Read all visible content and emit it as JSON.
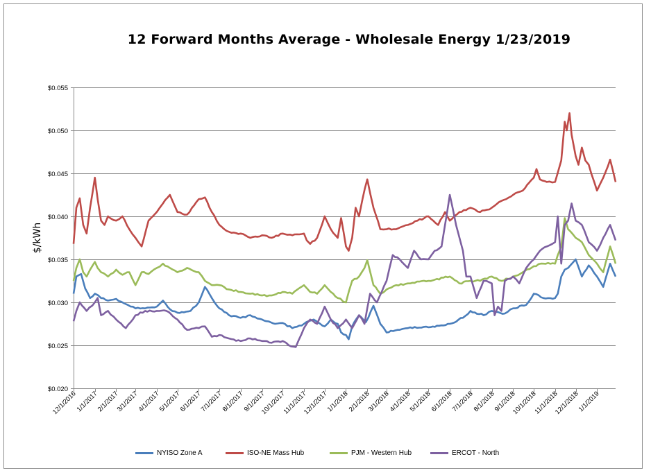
{
  "chart_data": {
    "type": "line",
    "title": "12 Forward Months Average - Wholesale Energy 1/23/2019",
    "ylabel": "$/kWh",
    "xlabel": "",
    "ylim": [
      0.02,
      0.055
    ],
    "yticks": [
      "$0.020",
      "$0.025",
      "$0.030",
      "$0.035",
      "$0.040",
      "$0.045",
      "$0.050",
      "$0.055"
    ],
    "ytick_values": [
      0.02,
      0.025,
      0.03,
      0.035,
      0.04,
      0.045,
      0.05,
      0.055
    ],
    "xlim": [
      "2016-12-01",
      "2019-01-28"
    ],
    "xticks": [
      "12/1/2016",
      "1/1/2017",
      "2/1/2017",
      "3/1/2017",
      "4/1/2017",
      "5/1/2017",
      "6/1/2017",
      "7/1/2017",
      "8/1/2017",
      "9/1/2017",
      "10/1/2017",
      "11/1/2017",
      "12/1/2017",
      "1/1/2018",
      "2/1/2018",
      "3/1/2018",
      "4/1/2018",
      "5/1/2018",
      "6/1/2018",
      "7/1/2018",
      "8/1/2018",
      "9/1/2018",
      "10/1/2018",
      "11/1/2018",
      "12/1/2018",
      "1/1/2019"
    ],
    "xtick_dates": [
      "2016-12-01",
      "2017-01-01",
      "2017-02-01",
      "2017-03-01",
      "2017-04-01",
      "2017-05-01",
      "2017-06-01",
      "2017-07-01",
      "2017-08-01",
      "2017-09-01",
      "2017-10-01",
      "2017-11-01",
      "2017-12-01",
      "2018-01-01",
      "2018-02-01",
      "2018-03-01",
      "2018-04-01",
      "2018-05-01",
      "2018-06-01",
      "2018-07-01",
      "2018-08-01",
      "2018-09-01",
      "2018-10-01",
      "2018-11-01",
      "2018-12-01",
      "2019-01-01"
    ],
    "grid": true,
    "legend_position": "bottom",
    "series": [
      {
        "name": "NYISO Zone A",
        "color": "#4a7ebb",
        "x": [
          "2016-12-01",
          "2016-12-05",
          "2016-12-12",
          "2016-12-18",
          "2016-12-25",
          "2017-01-01",
          "2017-01-10",
          "2017-01-20",
          "2017-02-01",
          "2017-02-15",
          "2017-03-01",
          "2017-03-15",
          "2017-04-01",
          "2017-04-10",
          "2017-04-20",
          "2017-05-01",
          "2017-05-20",
          "2017-06-01",
          "2017-06-10",
          "2017-06-20",
          "2017-07-01",
          "2017-07-15",
          "2017-08-01",
          "2017-08-15",
          "2017-09-01",
          "2017-09-20",
          "2017-10-01",
          "2017-10-15",
          "2017-11-01",
          "2017-11-15",
          "2017-12-01",
          "2017-12-10",
          "2017-12-20",
          "2017-12-25",
          "2018-01-01",
          "2018-01-05",
          "2018-01-10",
          "2018-01-20",
          "2018-01-30",
          "2018-02-10",
          "2018-02-20",
          "2018-03-01",
          "2018-03-20",
          "2018-04-01",
          "2018-05-01",
          "2018-06-01",
          "2018-06-20",
          "2018-07-01",
          "2018-07-20",
          "2018-08-01",
          "2018-08-20",
          "2018-09-01",
          "2018-09-20",
          "2018-10-01",
          "2018-10-15",
          "2018-11-01",
          "2018-11-05",
          "2018-11-10",
          "2018-11-15",
          "2018-11-20",
          "2018-12-01",
          "2018-12-10",
          "2018-12-20",
          "2019-01-01",
          "2019-01-10",
          "2019-01-20",
          "2019-01-28"
        ],
        "values": [
          0.031,
          0.033,
          0.0333,
          0.0316,
          0.0305,
          0.031,
          0.0305,
          0.0302,
          0.0304,
          0.0298,
          0.0293,
          0.0293,
          0.0295,
          0.0302,
          0.0292,
          0.0288,
          0.029,
          0.03,
          0.0318,
          0.0305,
          0.0293,
          0.0285,
          0.0282,
          0.0285,
          0.028,
          0.0275,
          0.0276,
          0.027,
          0.0275,
          0.028,
          0.0272,
          0.028,
          0.0275,
          0.0265,
          0.0262,
          0.0257,
          0.0272,
          0.0285,
          0.0277,
          0.0296,
          0.0275,
          0.0265,
          0.0268,
          0.027,
          0.0271,
          0.0275,
          0.0282,
          0.029,
          0.0285,
          0.029,
          0.0287,
          0.0293,
          0.0297,
          0.031,
          0.0305,
          0.0305,
          0.031,
          0.033,
          0.0338,
          0.034,
          0.035,
          0.033,
          0.0343,
          0.033,
          0.0318,
          0.0345,
          0.033
        ]
      },
      {
        "name": "ISO-NE Mass Hub",
        "color": "#be4b48",
        "x": [
          "2016-12-01",
          "2016-12-05",
          "2016-12-10",
          "2016-12-15",
          "2016-12-20",
          "2016-12-25",
          "2017-01-01",
          "2017-01-05",
          "2017-01-10",
          "2017-01-15",
          "2017-01-20",
          "2017-02-01",
          "2017-02-10",
          "2017-02-20",
          "2017-03-01",
          "2017-03-10",
          "2017-03-20",
          "2017-04-01",
          "2017-04-10",
          "2017-04-20",
          "2017-05-01",
          "2017-05-15",
          "2017-06-01",
          "2017-06-10",
          "2017-06-20",
          "2017-07-01",
          "2017-07-15",
          "2017-08-01",
          "2017-08-15",
          "2017-09-01",
          "2017-09-15",
          "2017-10-01",
          "2017-10-15",
          "2017-11-01",
          "2017-11-05",
          "2017-11-10",
          "2017-11-20",
          "2017-12-01",
          "2017-12-10",
          "2017-12-20",
          "2017-12-25",
          "2018-01-01",
          "2018-01-05",
          "2018-01-10",
          "2018-01-15",
          "2018-01-20",
          "2018-01-25",
          "2018-02-01",
          "2018-02-10",
          "2018-02-20",
          "2018-03-01",
          "2018-03-15",
          "2018-04-01",
          "2018-04-15",
          "2018-05-01",
          "2018-05-15",
          "2018-05-25",
          "2018-06-01",
          "2018-06-15",
          "2018-07-01",
          "2018-07-15",
          "2018-08-01",
          "2018-08-15",
          "2018-09-01",
          "2018-09-15",
          "2018-10-01",
          "2018-10-05",
          "2018-10-10",
          "2018-10-20",
          "2018-11-01",
          "2018-11-10",
          "2018-11-15",
          "2018-11-18",
          "2018-11-22",
          "2018-11-25",
          "2018-12-01",
          "2018-12-05",
          "2018-12-10",
          "2018-12-15",
          "2018-12-20",
          "2019-01-01",
          "2019-01-10",
          "2019-01-20",
          "2019-01-28"
        ],
        "values": [
          0.0368,
          0.041,
          0.0421,
          0.039,
          0.038,
          0.041,
          0.0445,
          0.042,
          0.0395,
          0.039,
          0.04,
          0.0395,
          0.04,
          0.0385,
          0.0375,
          0.0365,
          0.0395,
          0.0405,
          0.0415,
          0.0425,
          0.0405,
          0.0402,
          0.042,
          0.0422,
          0.0405,
          0.039,
          0.0382,
          0.038,
          0.0375,
          0.0378,
          0.0375,
          0.038,
          0.0378,
          0.038,
          0.0372,
          0.0368,
          0.0375,
          0.04,
          0.0385,
          0.0375,
          0.0398,
          0.0365,
          0.036,
          0.0375,
          0.041,
          0.04,
          0.042,
          0.0443,
          0.041,
          0.0385,
          0.0385,
          0.0385,
          0.039,
          0.0395,
          0.04,
          0.039,
          0.0405,
          0.0395,
          0.0405,
          0.041,
          0.0405,
          0.041,
          0.0418,
          0.0425,
          0.043,
          0.0445,
          0.0455,
          0.0443,
          0.044,
          0.044,
          0.0465,
          0.051,
          0.05,
          0.052,
          0.0495,
          0.047,
          0.046,
          0.048,
          0.0465,
          0.046,
          0.043,
          0.0445,
          0.0466,
          0.044
        ]
      },
      {
        "name": "PJM - Western Hub",
        "color": "#9bbb59",
        "x": [
          "2016-12-01",
          "2016-12-05",
          "2016-12-10",
          "2016-12-15",
          "2016-12-20",
          "2016-12-25",
          "2017-01-01",
          "2017-01-05",
          "2017-01-10",
          "2017-01-20",
          "2017-02-01",
          "2017-02-10",
          "2017-02-20",
          "2017-03-01",
          "2017-03-10",
          "2017-03-20",
          "2017-04-01",
          "2017-04-10",
          "2017-04-20",
          "2017-05-01",
          "2017-05-15",
          "2017-06-01",
          "2017-06-10",
          "2017-06-20",
          "2017-07-01",
          "2017-07-15",
          "2017-08-01",
          "2017-08-15",
          "2017-09-01",
          "2017-09-15",
          "2017-10-01",
          "2017-10-15",
          "2017-11-01",
          "2017-11-10",
          "2017-11-20",
          "2017-12-01",
          "2017-12-10",
          "2017-12-20",
          "2018-01-01",
          "2018-01-10",
          "2018-01-20",
          "2018-01-28",
          "2018-02-01",
          "2018-02-10",
          "2018-02-20",
          "2018-03-01",
          "2018-03-15",
          "2018-04-01",
          "2018-05-01",
          "2018-06-01",
          "2018-06-15",
          "2018-07-01",
          "2018-07-15",
          "2018-08-01",
          "2018-08-15",
          "2018-09-01",
          "2018-09-15",
          "2018-10-01",
          "2018-10-15",
          "2018-11-01",
          "2018-11-05",
          "2018-11-10",
          "2018-11-15",
          "2018-11-20",
          "2018-12-01",
          "2018-12-10",
          "2018-12-20",
          "2019-01-01",
          "2019-01-10",
          "2019-01-20",
          "2019-01-28"
        ],
        "values": [
          0.0325,
          0.034,
          0.035,
          0.0335,
          0.033,
          0.0338,
          0.0347,
          0.034,
          0.0335,
          0.033,
          0.0338,
          0.0332,
          0.0335,
          0.032,
          0.0335,
          0.0333,
          0.034,
          0.0345,
          0.034,
          0.0335,
          0.034,
          0.0335,
          0.0325,
          0.032,
          0.032,
          0.0315,
          0.0312,
          0.031,
          0.0308,
          0.0308,
          0.0312,
          0.031,
          0.032,
          0.0312,
          0.031,
          0.032,
          0.0312,
          0.0305,
          0.03,
          0.0325,
          0.033,
          0.034,
          0.0349,
          0.032,
          0.031,
          0.0315,
          0.032,
          0.0322,
          0.0325,
          0.033,
          0.0322,
          0.0325,
          0.0325,
          0.033,
          0.0325,
          0.033,
          0.0335,
          0.0342,
          0.0345,
          0.0345,
          0.0355,
          0.0365,
          0.0398,
          0.0385,
          0.0375,
          0.037,
          0.0355,
          0.0345,
          0.0335,
          0.0365,
          0.0345
        ]
      },
      {
        "name": "ERCOT - North",
        "color": "#7d60a0",
        "x": [
          "2016-12-01",
          "2016-12-05",
          "2016-12-10",
          "2016-12-20",
          "2017-01-01",
          "2017-01-05",
          "2017-01-10",
          "2017-01-20",
          "2017-02-01",
          "2017-02-15",
          "2017-03-01",
          "2017-03-15",
          "2017-04-01",
          "2017-04-15",
          "2017-05-01",
          "2017-05-15",
          "2017-06-01",
          "2017-06-10",
          "2017-06-20",
          "2017-07-01",
          "2017-07-15",
          "2017-08-01",
          "2017-08-15",
          "2017-09-01",
          "2017-09-15",
          "2017-10-01",
          "2017-10-10",
          "2017-10-20",
          "2017-11-01",
          "2017-11-10",
          "2017-11-20",
          "2017-12-01",
          "2017-12-10",
          "2017-12-20",
          "2018-01-01",
          "2018-01-10",
          "2018-01-20",
          "2018-01-28",
          "2018-02-05",
          "2018-02-15",
          "2018-03-01",
          "2018-03-10",
          "2018-03-20",
          "2018-04-01",
          "2018-04-10",
          "2018-04-20",
          "2018-05-01",
          "2018-05-10",
          "2018-05-20",
          "2018-05-25",
          "2018-06-01",
          "2018-06-10",
          "2018-06-20",
          "2018-06-25",
          "2018-07-01",
          "2018-07-10",
          "2018-07-20",
          "2018-08-01",
          "2018-08-05",
          "2018-08-10",
          "2018-08-15",
          "2018-08-20",
          "2018-09-01",
          "2018-09-10",
          "2018-09-20",
          "2018-10-01",
          "2018-10-10",
          "2018-10-20",
          "2018-11-01",
          "2018-11-05",
          "2018-11-10",
          "2018-11-15",
          "2018-11-20",
          "2018-11-25",
          "2018-12-01",
          "2018-12-10",
          "2018-12-20",
          "2019-01-01",
          "2019-01-10",
          "2019-01-20",
          "2019-01-28"
        ],
        "values": [
          0.0278,
          0.029,
          0.03,
          0.029,
          0.03,
          0.0305,
          0.0285,
          0.029,
          0.028,
          0.027,
          0.0285,
          0.029,
          0.029,
          0.029,
          0.028,
          0.0268,
          0.027,
          0.0272,
          0.026,
          0.0262,
          0.0258,
          0.0255,
          0.0258,
          0.0255,
          0.0253,
          0.0255,
          0.025,
          0.0248,
          0.027,
          0.028,
          0.0275,
          0.0295,
          0.028,
          0.027,
          0.028,
          0.027,
          0.0285,
          0.0275,
          0.031,
          0.03,
          0.0325,
          0.0355,
          0.035,
          0.034,
          0.036,
          0.035,
          0.035,
          0.036,
          0.0365,
          0.039,
          0.0425,
          0.039,
          0.036,
          0.033,
          0.033,
          0.0305,
          0.0325,
          0.0322,
          0.0285,
          0.0295,
          0.029,
          0.0325,
          0.033,
          0.0322,
          0.034,
          0.035,
          0.036,
          0.0365,
          0.037,
          0.04,
          0.0345,
          0.039,
          0.0395,
          0.0415,
          0.0395,
          0.039,
          0.037,
          0.036,
          0.0375,
          0.039,
          0.0372
        ]
      }
    ]
  }
}
